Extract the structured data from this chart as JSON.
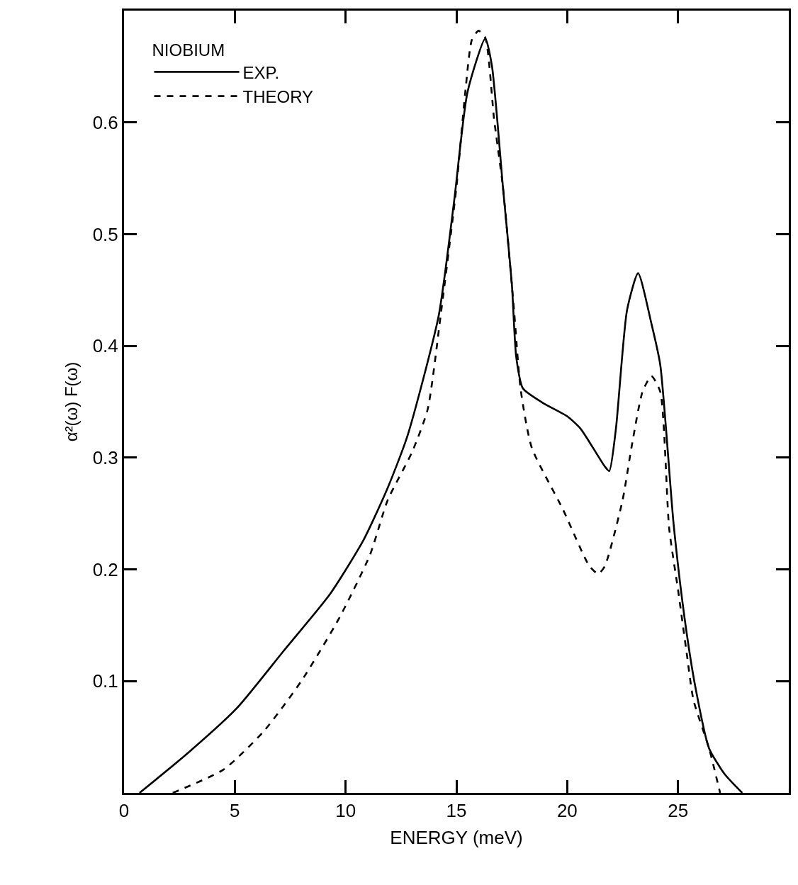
{
  "chart_data": {
    "type": "line",
    "xlabel": "ENERGY (meV)",
    "ylabel": "α²(ω) F(ω)",
    "legend_title": "NIOBIUM",
    "legend": "top left",
    "marker": "none",
    "xlim": [
      0,
      30
    ],
    "ylim": [
      0,
      0.7
    ],
    "xticks": [
      0,
      5,
      10,
      15,
      20,
      25
    ],
    "yticks": [
      0.1,
      0.2,
      0.3,
      0.4,
      0.5,
      0.6
    ],
    "series": [
      {
        "name": "EXP.",
        "color": "#000000",
        "line_style": "solid",
        "x": [
          0.7,
          2.9,
          5.1,
          7.2,
          9.3,
          10.8,
          11.9,
          12.8,
          14.2,
          14.9,
          15.5,
          16.3,
          16.6,
          17.1,
          17.5,
          17.7,
          18.0,
          18.9,
          20.0,
          20.6,
          21.7,
          21.9,
          22.2,
          22.7,
          23.2,
          23.8,
          24.2,
          24.8,
          25.3,
          25.8,
          26.4,
          27.1,
          27.9
        ],
        "values": [
          0,
          0.036,
          0.076,
          0.127,
          0.178,
          0.226,
          0.273,
          0.32,
          0.427,
          0.53,
          0.627,
          0.675,
          0.651,
          0.542,
          0.456,
          0.39,
          0.362,
          0.349,
          0.337,
          0.326,
          0.292,
          0.288,
          0.326,
          0.432,
          0.465,
          0.42,
          0.383,
          0.241,
          0.156,
          0.093,
          0.04,
          0.017,
          0
        ]
      },
      {
        "name": "THEORY",
        "color": "#000000",
        "line_style": "dashed",
        "x": [
          2.2,
          4.5,
          6.3,
          8.0,
          9.7,
          11.1,
          11.9,
          13.0,
          13.7,
          14.3,
          15.0,
          15.4,
          15.7,
          16.0,
          16.3,
          16.7,
          17.1,
          17.6,
          17.9,
          18.4,
          19.8,
          21.0,
          21.4,
          21.7,
          22.5,
          22.9,
          23.4,
          23.8,
          24.2,
          24.6,
          25.0,
          25.4,
          25.7,
          26.4,
          26.9
        ],
        "values": [
          0,
          0.021,
          0.055,
          0.1,
          0.156,
          0.213,
          0.262,
          0.305,
          0.343,
          0.429,
          0.542,
          0.627,
          0.674,
          0.682,
          0.676,
          0.603,
          0.542,
          0.432,
          0.361,
          0.309,
          0.254,
          0.203,
          0.196,
          0.203,
          0.262,
          0.309,
          0.359,
          0.373,
          0.359,
          0.237,
          0.182,
          0.124,
          0.083,
          0.04,
          0
        ]
      }
    ]
  }
}
